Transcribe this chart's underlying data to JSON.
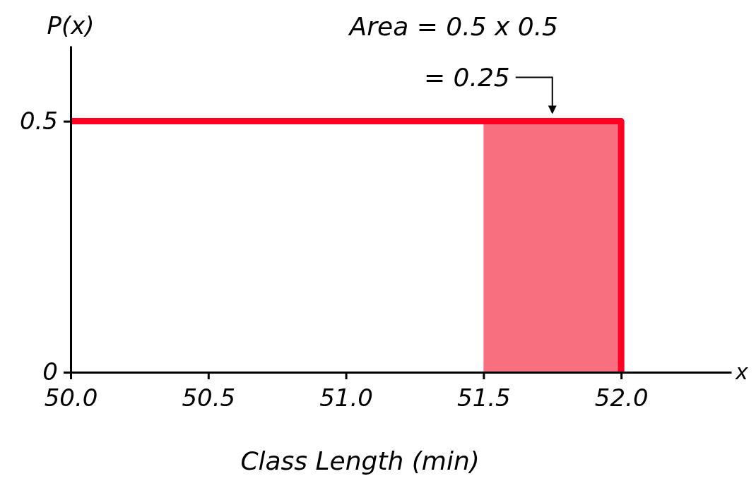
{
  "chart_data": {
    "type": "line",
    "xlabel": "Class Length (min)",
    "ylabel": "P(x)",
    "xlim": [
      50,
      52.4
    ],
    "ylim": [
      0,
      0.65
    ],
    "xticks": [
      {
        "value": 50,
        "label": "50.0"
      },
      50.5,
      {
        "value": 51,
        "label": "51.0"
      },
      51.5,
      {
        "value": 52,
        "label": "52.0"
      }
    ],
    "yticks": [
      0,
      0.5
    ],
    "series": [
      {
        "type": "area",
        "color": "#f86f7f",
        "x": [
          51.5,
          52
        ],
        "values": [
          0.5,
          0.5
        ]
      },
      {
        "color": "#ff0022",
        "x": [
          50,
          52,
          52
        ],
        "values": [
          0.5,
          0.5,
          0
        ]
      }
    ],
    "annotations": [
      "Area = 0.5 x 0.5",
      {
        "text": "= 0.25",
        "x": 51.75,
        "y": 0.5
      },
      "x"
    ]
  }
}
